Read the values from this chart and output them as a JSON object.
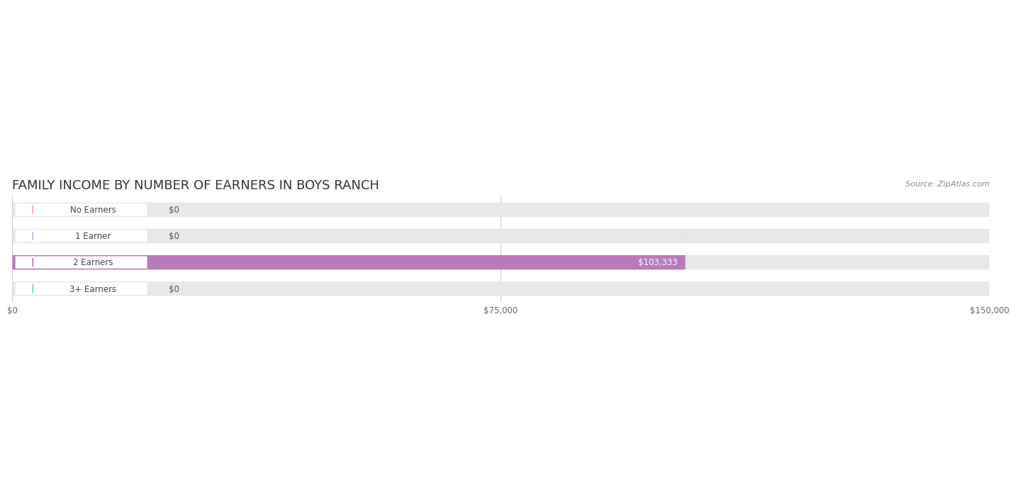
{
  "title": "FAMILY INCOME BY NUMBER OF EARNERS IN BOYS RANCH",
  "source": "Source: ZipAtlas.com",
  "categories": [
    "No Earners",
    "1 Earner",
    "2 Earners",
    "3+ Earners"
  ],
  "values": [
    0,
    0,
    103333,
    0
  ],
  "bar_colors": [
    "#f4a8a8",
    "#a8c4e8",
    "#b87bb8",
    "#7ecec4"
  ],
  "label_colors": [
    "#f4a8a8",
    "#a8c4e8",
    "#b87bb8",
    "#7ecec4"
  ],
  "bg_bar_color": "#eeeeee",
  "value_labels": [
    "$0",
    "$0",
    "$103,333",
    "$0"
  ],
  "xlim": [
    0,
    150000
  ],
  "xticks": [
    0,
    75000,
    150000
  ],
  "xtick_labels": [
    "$0",
    "$75,000",
    "$150,000"
  ],
  "title_fontsize": 13,
  "bar_height": 0.55,
  "background_color": "#ffffff",
  "plot_bg_color": "#f5f5f5"
}
